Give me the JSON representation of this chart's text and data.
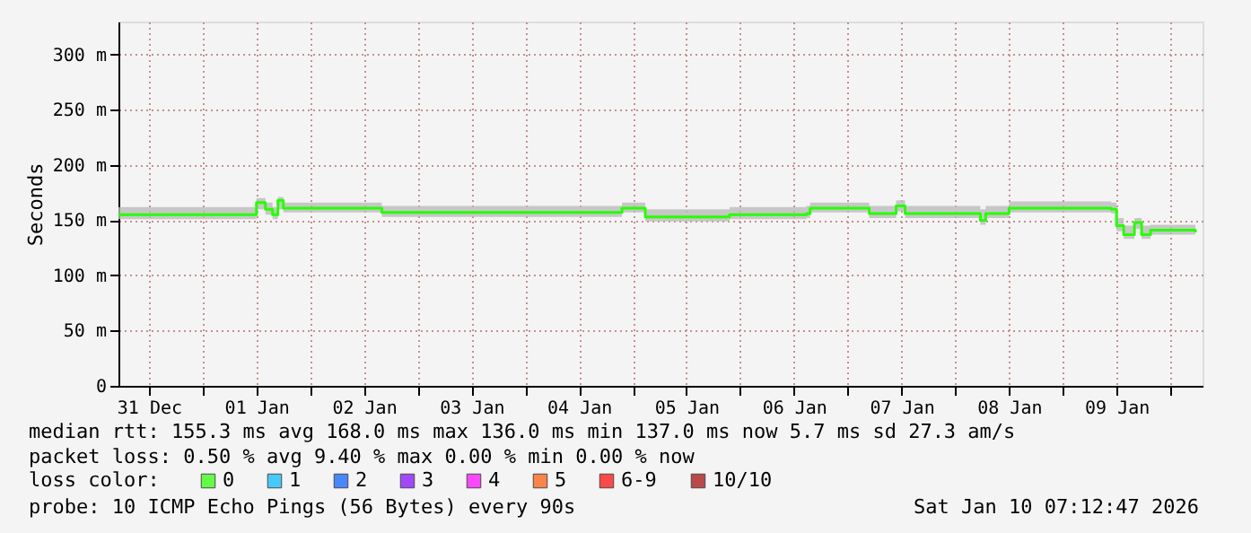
{
  "chart_data": {
    "type": "step",
    "ylabel": "Seconds",
    "x": [
      "2025-12-31T05:12",
      "2026-01-01T10:48",
      "2026-01-01T12:00",
      "2026-01-01T14:00",
      "2026-01-01T15:36",
      "2026-01-01T16:48",
      "2026-01-01T18:00",
      "2026-01-02T15:36",
      "2026-01-02T16:00",
      "2026-01-04T02:48",
      "2026-01-04T21:36",
      "2026-01-05T02:00",
      "2026-01-05T02:48",
      "2026-01-05T21:36",
      "2026-01-06T14:48",
      "2026-01-06T15:36",
      "2026-01-07T04:00",
      "2026-01-07T04:48",
      "2026-01-07T10:48",
      "2026-01-07T12:48",
      "2026-01-08T05:36",
      "2026-01-08T06:48",
      "2026-01-08T12:00",
      "2026-01-09T10:48",
      "2026-01-09T12:00",
      "2026-01-09T13:36",
      "2026-01-09T16:00",
      "2026-01-09T17:36",
      "2026-01-09T19:36",
      "2026-01-10T05:36"
    ],
    "series": [
      {
        "name": "0",
        "color": "#26ff00",
        "values": [
          155,
          155,
          166,
          160,
          155,
          168,
          161,
          161,
          157,
          157,
          161,
          161,
          153,
          155,
          156,
          161,
          161,
          156,
          163,
          156,
          150,
          156,
          161,
          160,
          145,
          137,
          148,
          137,
          141,
          139
        ],
        "lower": [
          151,
          151,
          160,
          155,
          151,
          160,
          157,
          157,
          153,
          153,
          157,
          157,
          149,
          151,
          152,
          157,
          157,
          152,
          158,
          152,
          146,
          152,
          157,
          156,
          140,
          133,
          142,
          133,
          137,
          135
        ],
        "upper": [
          162,
          162,
          170,
          166,
          162,
          171,
          166,
          166,
          163,
          163,
          166,
          166,
          160,
          162,
          163,
          166,
          166,
          163,
          168,
          163,
          160,
          163,
          167,
          166,
          152,
          145,
          152,
          145,
          146,
          144
        ]
      },
      {
        "name": "1",
        "color": "#00b8ff",
        "values": [
          null,
          null,
          null,
          null,
          null,
          null,
          null,
          null,
          null,
          null,
          null,
          null,
          null,
          null,
          null,
          null,
          null,
          null,
          null,
          null,
          null,
          null,
          null,
          null,
          null,
          null,
          null,
          null,
          null,
          null
        ]
      },
      {
        "name": "2",
        "color": "#0059ff",
        "values": [
          null,
          null,
          null,
          null,
          null,
          null,
          null,
          null,
          null,
          null,
          null,
          null,
          null,
          null,
          null,
          null,
          null,
          null,
          null,
          null,
          null,
          null,
          null,
          null,
          null,
          null,
          null,
          null,
          null,
          null
        ]
      },
      {
        "name": "3",
        "color": "#7e00ff",
        "values": [
          null,
          null,
          null,
          null,
          null,
          null,
          null,
          null,
          null,
          null,
          null,
          null,
          null,
          null,
          null,
          null,
          null,
          null,
          null,
          null,
          null,
          null,
          null,
          null,
          null,
          null,
          null,
          null,
          null,
          null
        ]
      },
      {
        "name": "4",
        "color": "#ff00ff",
        "values": [
          null,
          null,
          null,
          null,
          null,
          null,
          null,
          null,
          null,
          null,
          null,
          null,
          null,
          null,
          null,
          null,
          null,
          null,
          null,
          null,
          null,
          null,
          null,
          null,
          null,
          null,
          null,
          null,
          null,
          null
        ]
      },
      {
        "name": "5",
        "color": "#ff5500",
        "values": [
          null,
          null,
          null,
          null,
          null,
          null,
          null,
          null,
          null,
          null,
          null,
          null,
          null,
          null,
          null,
          null,
          null,
          null,
          null,
          null,
          null,
          null,
          null,
          null,
          null,
          null,
          null,
          null,
          null,
          null
        ]
      },
      {
        "name": "6-9",
        "color": "#ff0000",
        "values": [
          null,
          null,
          null,
          null,
          null,
          null,
          null,
          null,
          null,
          null,
          null,
          null,
          null,
          null,
          null,
          null,
          null,
          null,
          null,
          null,
          null,
          null,
          null,
          null,
          null,
          null,
          null,
          null,
          null,
          null
        ]
      },
      {
        "name": "10/10",
        "color": "#a10000",
        "values": [
          null,
          null,
          null,
          null,
          null,
          null,
          null,
          null,
          null,
          null,
          null,
          null,
          null,
          null,
          null,
          null,
          null,
          null,
          null,
          null,
          null,
          null,
          null,
          null,
          null,
          null,
          null,
          null,
          null,
          null
        ]
      }
    ],
    "legend_title": "loss color:",
    "legend": "bottom",
    "xlim": [
      "2025-12-31T05:12",
      "2026-01-10T07:12"
    ],
    "xticks": [
      {
        "value": "2025-12-31T12:00",
        "label": "31 Dec"
      },
      {
        "value": "2026-01-01T00:00",
        "label": null
      },
      {
        "value": "2026-01-01T12:00",
        "label": "01 Jan"
      },
      {
        "value": "2026-01-02T00:00",
        "label": null
      },
      {
        "value": "2026-01-02T12:00",
        "label": "02 Jan"
      },
      {
        "value": "2026-01-03T00:00",
        "label": null
      },
      {
        "value": "2026-01-03T12:00",
        "label": "03 Jan"
      },
      {
        "value": "2026-01-04T00:00",
        "label": null
      },
      {
        "value": "2026-01-04T12:00",
        "label": "04 Jan"
      },
      {
        "value": "2026-01-05T00:00",
        "label": null
      },
      {
        "value": "2026-01-05T12:00",
        "label": "05 Jan"
      },
      {
        "value": "2026-01-06T00:00",
        "label": null
      },
      {
        "value": "2026-01-06T12:00",
        "label": "06 Jan"
      },
      {
        "value": "2026-01-07T00:00",
        "label": null
      },
      {
        "value": "2026-01-07T12:00",
        "label": "07 Jan"
      },
      {
        "value": "2026-01-08T00:00",
        "label": null
      },
      {
        "value": "2026-01-08T12:00",
        "label": "08 Jan"
      },
      {
        "value": "2026-01-09T00:00",
        "label": null
      },
      {
        "value": "2026-01-09T12:00",
        "label": "09 Jan"
      },
      {
        "value": "2026-01-10T00:00",
        "label": null
      }
    ],
    "ylim": [
      0,
      330
    ],
    "yticks": [
      {
        "value": 0,
        "label": "0"
      },
      {
        "value": 50,
        "label": "50 m"
      },
      {
        "value": 100,
        "label": "100 m"
      },
      {
        "value": 150,
        "label": "150 m"
      },
      {
        "value": 200,
        "label": "200 m"
      },
      {
        "value": 250,
        "label": "250 m"
      },
      {
        "value": 300,
        "label": "300 m"
      }
    ],
    "grid": true,
    "line_style": "solid",
    "marker": "none",
    "annotations": [
      "median rtt:  155.3 ms avg  168.0 ms max  136.0 ms min  137.0 ms now  5.7 ms sd  27.3   am/s",
      "packet loss: 0.50 % avg  9.40 % max  0.00 % min  0.00 % now",
      "probe:       10 ICMP Echo Pings (56 Bytes) every 90s",
      "Sat Jan 10 07:12:47 2026"
    ]
  }
}
